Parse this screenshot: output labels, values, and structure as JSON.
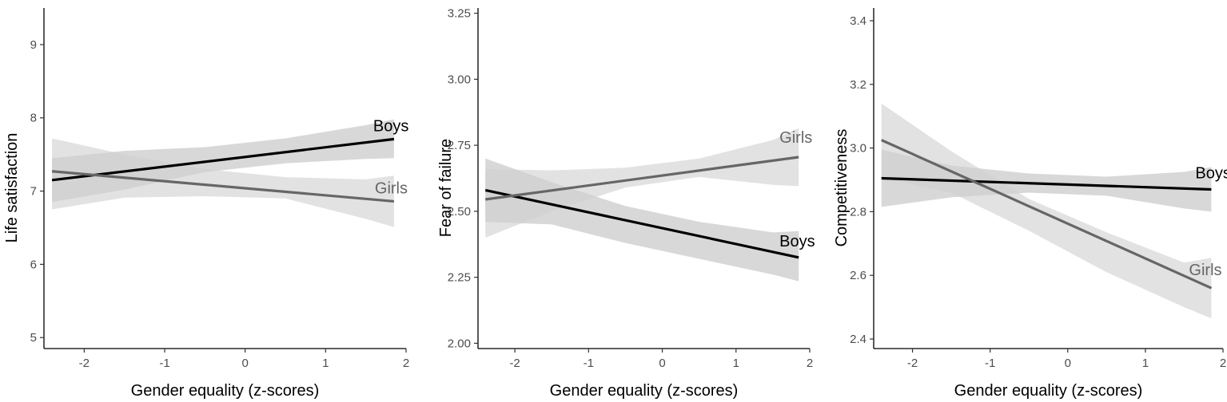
{
  "chart_data": [
    {
      "type": "line",
      "xlabel": "Gender equality (z-scores)",
      "ylabel": "Life satisfaction",
      "xlim": [
        -2.5,
        2.0
      ],
      "ylim": [
        4.85,
        9.5
      ],
      "xticks": [
        -2,
        -1,
        0,
        1,
        2
      ],
      "yticks": [
        5,
        6,
        7,
        8,
        9
      ],
      "x": [
        -2.4,
        1.85
      ],
      "series": [
        {
          "name": "Boys",
          "color": "#000000",
          "band_color": "#c0c0c0",
          "y": [
            7.15,
            7.71
          ],
          "ci_x": [
            -2.4,
            -1.5,
            -0.5,
            0.5,
            1.5,
            1.85
          ],
          "ci_lower": [
            6.85,
            7.02,
            7.26,
            7.38,
            7.44,
            7.45
          ],
          "ci_upper": [
            7.45,
            7.55,
            7.6,
            7.72,
            7.9,
            7.98
          ]
        },
        {
          "name": "Girls",
          "color": "#666666",
          "band_color": "#d0d0d0",
          "y": [
            7.27,
            6.86
          ],
          "ci_x": [
            -2.4,
            -1.5,
            -0.5,
            0.5,
            1.5,
            1.85
          ],
          "ci_lower": [
            6.75,
            6.91,
            6.93,
            6.9,
            6.62,
            6.51
          ],
          "ci_upper": [
            7.72,
            7.5,
            7.3,
            7.19,
            7.16,
            7.21
          ]
        }
      ]
    },
    {
      "type": "line",
      "xlabel": "Gender equality (z-scores)",
      "ylabel": "Fear of failure",
      "xlim": [
        -2.5,
        2.0
      ],
      "ylim": [
        1.98,
        3.27
      ],
      "xticks": [
        -2,
        -1,
        0,
        1,
        2
      ],
      "yticks": [
        2.0,
        2.25,
        2.5,
        2.75,
        3.0,
        3.25
      ],
      "ytick_labels": [
        "2.00",
        "2.25",
        "2.50",
        "2.75",
        "3.00",
        "3.25"
      ],
      "x": [
        -2.4,
        1.85
      ],
      "series": [
        {
          "name": "Boys",
          "color": "#000000",
          "band_color": "#c0c0c0",
          "y": [
            2.58,
            2.325
          ],
          "ci_x": [
            -2.4,
            -1.5,
            -0.5,
            0.5,
            1.5,
            1.85
          ],
          "ci_lower": [
            2.46,
            2.45,
            2.38,
            2.32,
            2.26,
            2.235
          ],
          "ci_upper": [
            2.7,
            2.61,
            2.52,
            2.46,
            2.42,
            2.425
          ]
        },
        {
          "name": "Girls",
          "color": "#666666",
          "band_color": "#d0d0d0",
          "y": [
            2.545,
            2.705
          ],
          "ci_x": [
            -2.4,
            -1.5,
            -0.5,
            0.5,
            1.5,
            1.85
          ],
          "ci_lower": [
            2.4,
            2.5,
            2.59,
            2.63,
            2.6,
            2.595
          ],
          "ci_upper": [
            2.66,
            2.655,
            2.665,
            2.7,
            2.77,
            2.815
          ]
        }
      ]
    },
    {
      "type": "line",
      "xlabel": "Gender equality (z-scores)",
      "ylabel": "Competitiveness",
      "xlim": [
        -2.5,
        2.0
      ],
      "ylim": [
        2.37,
        3.44
      ],
      "xticks": [
        -2,
        -1,
        0,
        1,
        2
      ],
      "yticks": [
        2.4,
        2.6,
        2.8,
        3.0,
        3.2,
        3.4
      ],
      "ytick_labels": [
        "2.4",
        "2.6",
        "2.8",
        "3.0",
        "3.2",
        "3.4"
      ],
      "x": [
        -2.4,
        1.85
      ],
      "series": [
        {
          "name": "Boys",
          "color": "#000000",
          "band_color": "#c0c0c0",
          "y": [
            2.905,
            2.87
          ],
          "ci_x": [
            -2.4,
            -1.5,
            -0.5,
            0.5,
            1.5,
            1.85
          ],
          "ci_lower": [
            2.815,
            2.845,
            2.86,
            2.85,
            2.81,
            2.8
          ],
          "ci_upper": [
            2.995,
            2.945,
            2.92,
            2.91,
            2.925,
            2.94
          ]
        },
        {
          "name": "Girls",
          "color": "#666666",
          "band_color": "#d0d0d0",
          "y": [
            3.025,
            2.56
          ],
          "ci_x": [
            -2.4,
            -1.5,
            -0.5,
            0.5,
            1.5,
            1.85
          ],
          "ci_lower": [
            2.905,
            2.86,
            2.74,
            2.61,
            2.5,
            2.465
          ],
          "ci_upper": [
            3.14,
            2.99,
            2.84,
            2.735,
            2.64,
            2.655
          ]
        }
      ]
    }
  ]
}
